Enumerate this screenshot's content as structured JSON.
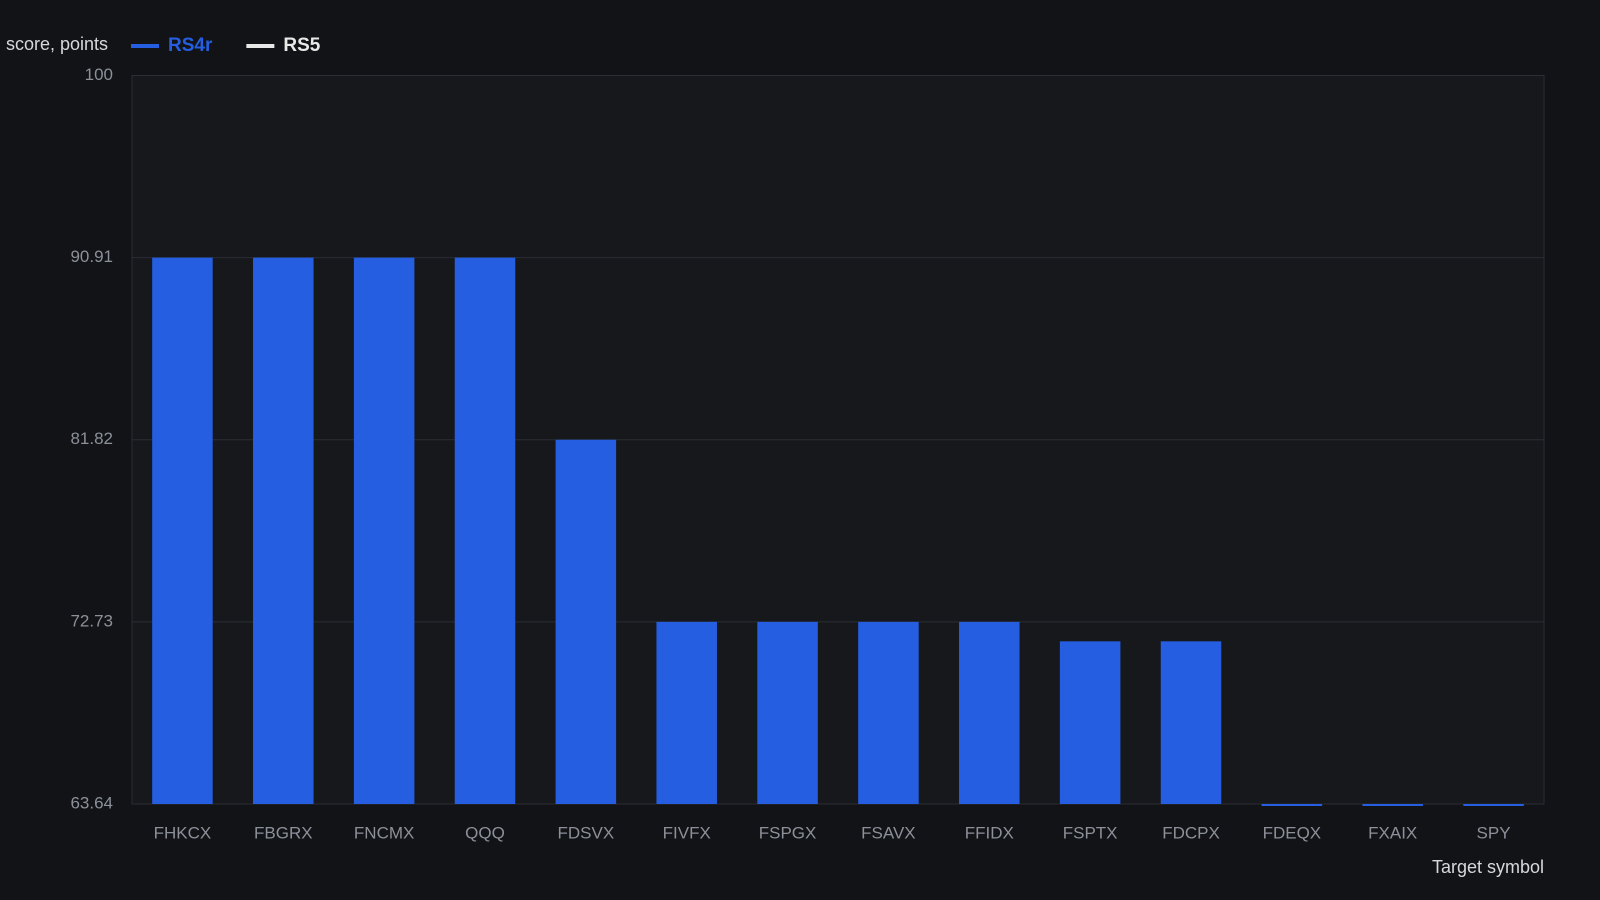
{
  "chart_data": {
    "type": "bar",
    "y_label": "score, points",
    "x_label": "Target symbol",
    "categories": [
      "FHKCX",
      "FBGRX",
      "FNCMX",
      "QQQ",
      "FDSVX",
      "FIVFX",
      "FSPGX",
      "FSAVX",
      "FFIDX",
      "FSPTX",
      "FDCPX",
      "FDEQX",
      "FXAIX",
      "SPY"
    ],
    "series": [
      {
        "name": "RS4r",
        "color": "#255ee0",
        "values": [
          90.91,
          90.91,
          90.91,
          90.91,
          81.82,
          72.73,
          72.73,
          72.73,
          72.73,
          71.76,
          71.76,
          63.64,
          63.64,
          63.64
        ]
      },
      {
        "name": "RS5",
        "color": "#e8e8e8",
        "values": [
          null,
          null,
          null,
          null,
          null,
          null,
          null,
          null,
          null,
          null,
          null,
          null,
          null,
          null
        ]
      }
    ],
    "ylim": [
      63.64,
      100
    ],
    "yticks": [
      63.64,
      72.73,
      81.82,
      90.91,
      100
    ],
    "grid": true
  }
}
